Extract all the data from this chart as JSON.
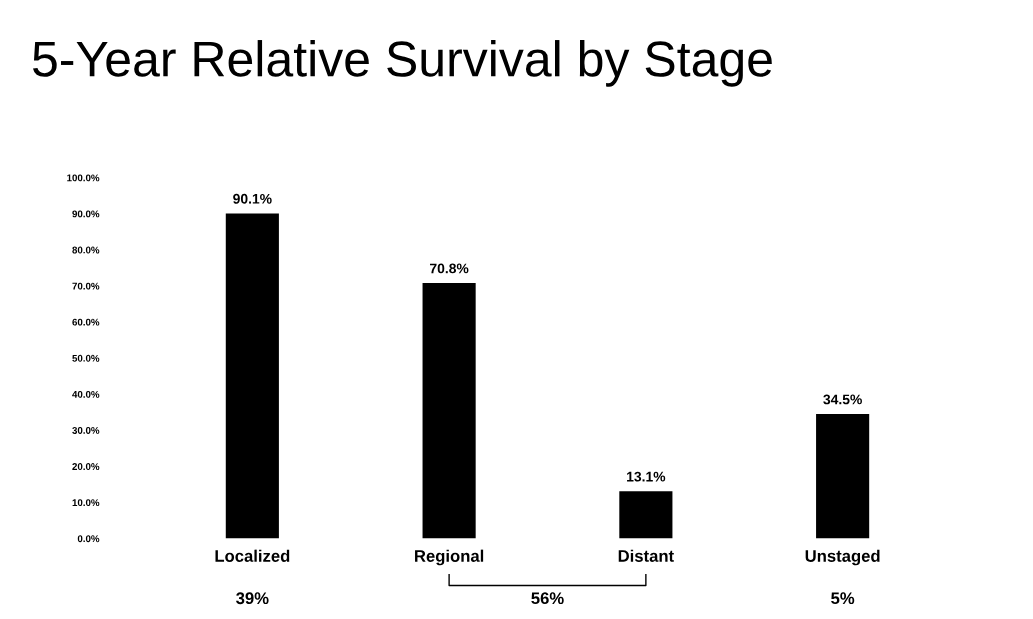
{
  "chart_data": {
    "type": "bar",
    "title": "5-Year Relative Survival by Stage",
    "categories": [
      "Localized",
      "Regional",
      "Distant",
      "Unstaged"
    ],
    "values": [
      90.1,
      70.8,
      13.1,
      34.5
    ],
    "color": "#000000",
    "value_labels": [
      "90.1%",
      "70.8%",
      "13.1%",
      "34.5%"
    ],
    "ylim": [
      0,
      100
    ],
    "yticks": [
      {
        "value": 0,
        "label": "0.0%"
      },
      {
        "value": 10,
        "label": "10.0%"
      },
      {
        "value": 20,
        "label": "20.0%"
      },
      {
        "value": 30,
        "label": "30.0%"
      },
      {
        "value": 40,
        "label": "40.0%"
      },
      {
        "value": 50,
        "label": "50.0%"
      },
      {
        "value": 60,
        "label": "60.0%"
      },
      {
        "value": 70,
        "label": "70.0%"
      },
      {
        "value": 80,
        "label": "80.0%"
      },
      {
        "value": 90,
        "label": "90.0%"
      },
      {
        "value": 100,
        "label": "100.0%"
      }
    ],
    "annotations": [
      "39%",
      "56%",
      "5%"
    ],
    "grid": false,
    "legend": false
  }
}
